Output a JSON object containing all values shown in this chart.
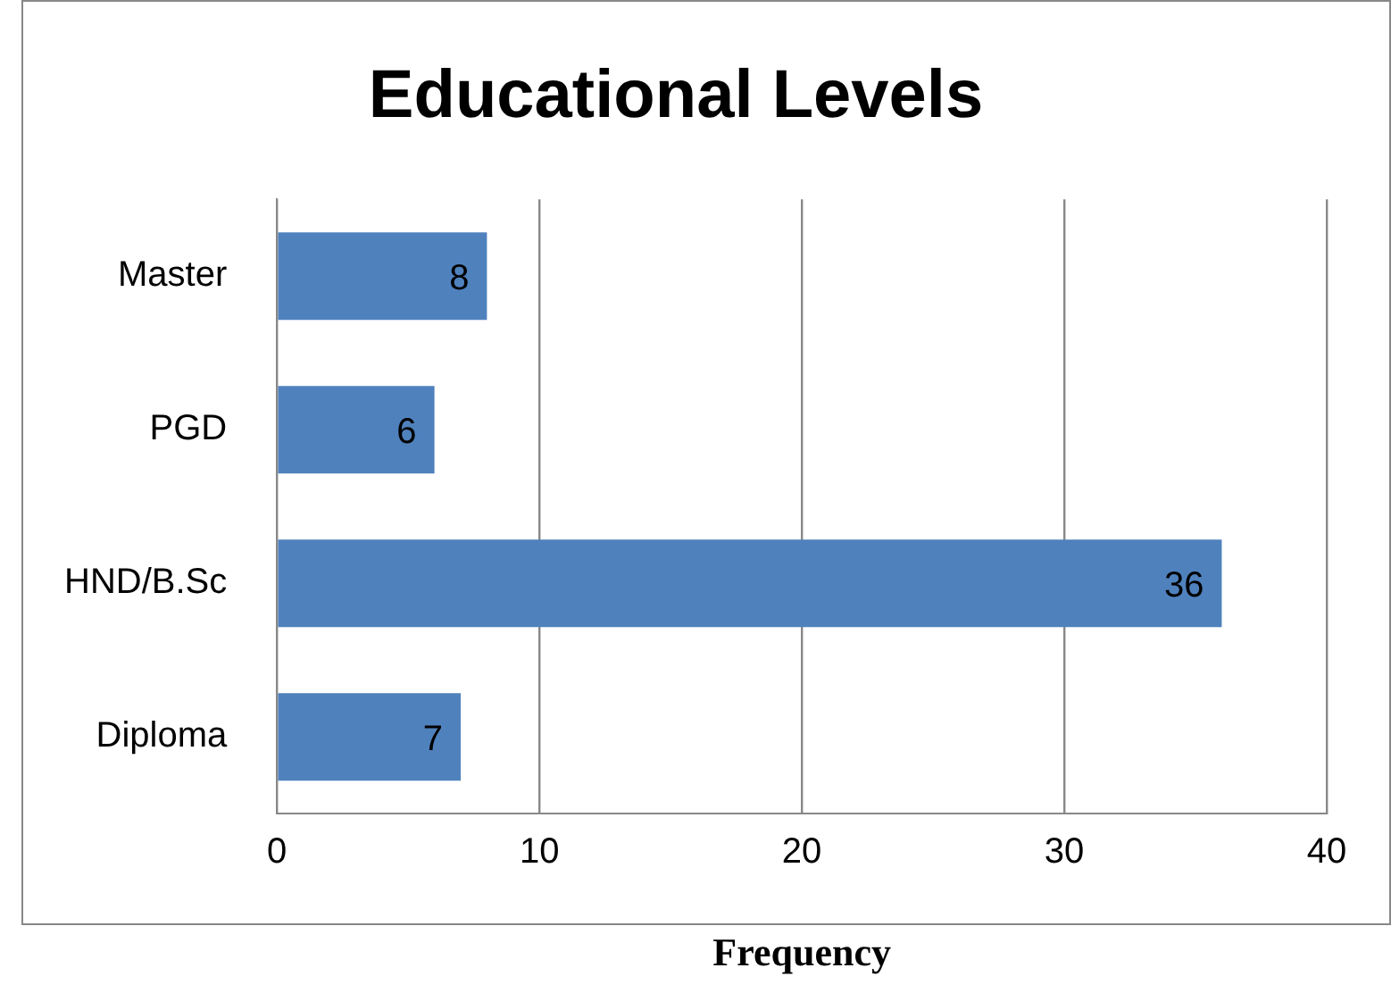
{
  "chart_data": {
    "type": "bar",
    "orientation": "horizontal",
    "title": "Educational Levels",
    "xlabel": "Frequency",
    "categories": [
      "Master",
      "PGD",
      "HND/B.Sc",
      "Diploma"
    ],
    "values": [
      8,
      6,
      36,
      7
    ],
    "color": "#4f81bd",
    "xlim": [
      0,
      40
    ],
    "xticks": [
      0,
      10,
      20,
      30,
      40
    ],
    "grid": "x",
    "data_labels": true,
    "legend": false
  }
}
